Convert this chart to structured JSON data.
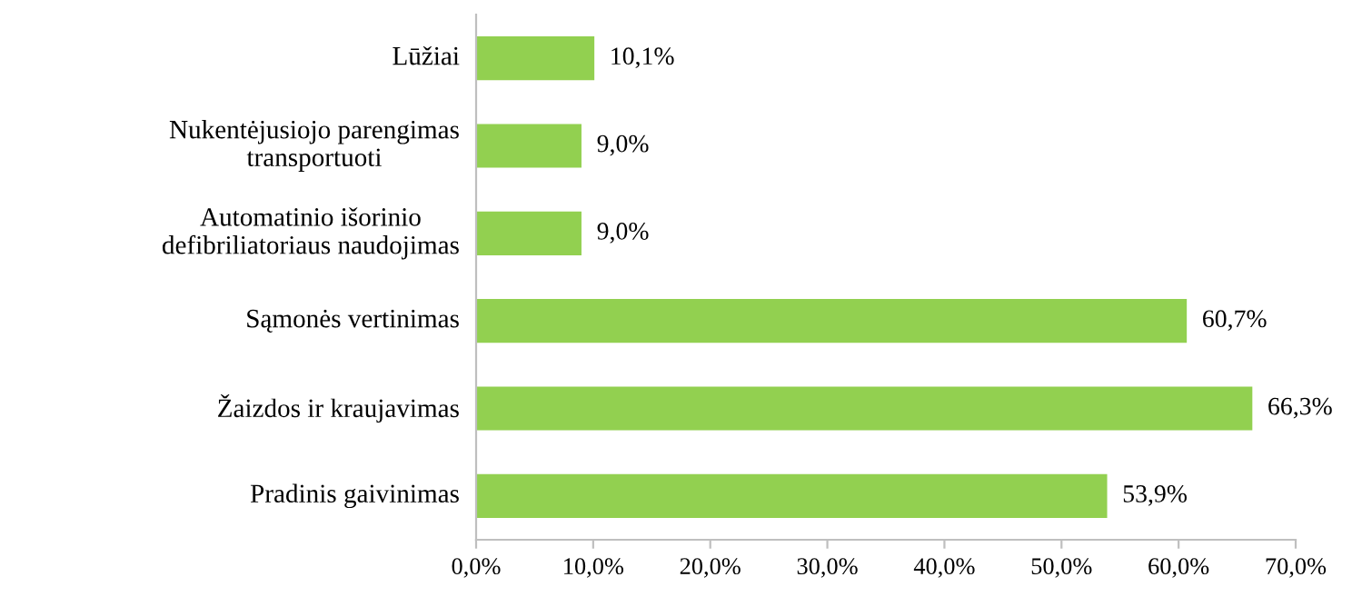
{
  "chart_data": {
    "type": "bar",
    "orientation": "horizontal",
    "categories": [
      "Lūžiai",
      "Nukentėjusiojo parengimas transportuoti",
      "Automatinio išorinio defibriliatoriaus naudojimas",
      "Sąmonės vertinimas",
      "Žaizdos ir kraujavimas",
      "Pradinis gaivinimas"
    ],
    "values": [
      10.1,
      9.0,
      9.0,
      60.7,
      66.3,
      53.9
    ],
    "value_labels": [
      "10,1%",
      "9,0%",
      "9,0%",
      "60,7%",
      "66,3%",
      "53,9%"
    ],
    "color": "#92d050",
    "xlim": [
      0,
      70
    ],
    "xticks": [
      {
        "value": 0,
        "label": "0,0%"
      },
      {
        "value": 10,
        "label": "10,0%"
      },
      {
        "value": 20,
        "label": "20,0%"
      },
      {
        "value": 30,
        "label": "30,0%"
      },
      {
        "value": 40,
        "label": "40,0%"
      },
      {
        "value": 50,
        "label": "50,0%"
      },
      {
        "value": 60,
        "label": "60,0%"
      },
      {
        "value": 70,
        "label": "70,0%"
      }
    ],
    "grid": false,
    "legend": false
  }
}
